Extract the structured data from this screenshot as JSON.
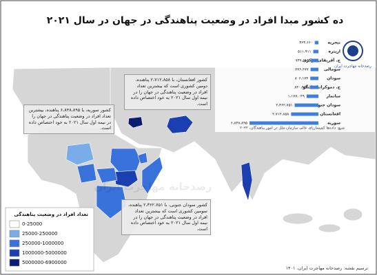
{
  "title": "ده کشور مبدا افراد در وضعیت پناهندگی در جهان در سال ۲۰۲۱",
  "chart_data": {
    "type": "bar",
    "orientation": "horizontal",
    "categories": [
      "نیجریه",
      "اریتره",
      "ج. آفریقای مرکزی",
      "سومالی",
      "سودان",
      "ج. دموکراتیک کنگو",
      "میانمار",
      "سودان جنوبی",
      "افغانستان",
      "سوریه"
    ],
    "values": [
      363660,
      511911,
      737685,
      776677,
      806174,
      840453,
      1177049,
      2362751,
      2712858,
      6848895
    ],
    "value_labels": [
      "۳۶۳،۶۶۰",
      "۵۱۱،۹۱۱",
      "۷۳۷،۶۸۵",
      "۷۷۶،۶۷۷",
      "۸۰۶،۱۷۴",
      "۸۴۰،۴۵۳",
      "۱،۱۷۷،۰۴۹",
      "۲،۳۶۲،۷۵۱",
      "۲،۷۱۲،۸۵۸",
      "۶،۸۴۸،۸۹۵"
    ],
    "color": "#3f7fd9",
    "source": "منبع: داده‌ها کمیساریای عالی سازمان ملل در امور پناهندگان، ۲۰۲۲"
  },
  "logo": "رصدخانه مهاجرت ایران",
  "watermark": "رصدخانه مهاجرت ایران",
  "legend": {
    "title": "تعداد افراد در وضعیت پناهندگی",
    "items": [
      "0-25000",
      "25000-250000",
      "250000-1000000",
      "1000000-5000000",
      "5000000-6900000"
    ],
    "colors": [
      "#ffffff",
      "#79ace8",
      "#3a72dc",
      "#1b3fb0",
      "#0b1d73"
    ]
  },
  "callouts": [
    "کشور افغانستان، با ۲،۷۱۲،۸۵۸ پناهنده، دومین کشوری است که بیشترین تعداد افراد در وضعیت پناهندگی در جهان را در نیمه اول سال ۲۰۲۱ به خود اختصاص داده است.",
    "کشور سوریه، با ۶،۸۴۸،۸۹۵ پناهنده، بیشترین تعداد افراد در وضعیت پناهندگی در جهان را در نیمه اول سال ۲۰۲۱ به خود اختصاص داده است.",
    "کشور سودان جنوبی، با ۲،۳۶۲،۷۵۱ پناهنده، سومین کشوری است که بیشترین تعداد افراد در وضعیت پناهندگی در جهان را در نیمه اول سال ۲۰۲۱ به خود اختصاص داده است."
  ],
  "credit": "ترسیم نقشه: رصدخانه مهاجرت ایران، ۱۴۰۱"
}
